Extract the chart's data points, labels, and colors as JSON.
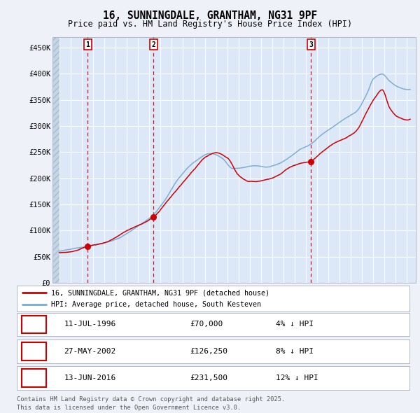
{
  "title": "16, SUNNINGDALE, GRANTHAM, NG31 9PF",
  "subtitle": "Price paid vs. HM Land Registry's House Price Index (HPI)",
  "background_color": "#eef2f8",
  "plot_bg_color": "#dce8f8",
  "ylim": [
    0,
    470000
  ],
  "yticks": [
    0,
    50000,
    100000,
    150000,
    200000,
    250000,
    300000,
    350000,
    400000,
    450000
  ],
  "ytick_labels": [
    "£0",
    "£50K",
    "£100K",
    "£150K",
    "£200K",
    "£250K",
    "£300K",
    "£350K",
    "£400K",
    "£450K"
  ],
  "sale_dates": [
    1996.53,
    2002.41,
    2016.45
  ],
  "sale_prices": [
    70000,
    126250,
    231500
  ],
  "marker_nums": [
    "1",
    "2",
    "3"
  ],
  "legend_line1": "16, SUNNINGDALE, GRANTHAM, NG31 9PF (detached house)",
  "legend_line2": "HPI: Average price, detached house, South Kesteven",
  "table_rows": [
    {
      "num": "1",
      "date": "11-JUL-1996",
      "price": "£70,000",
      "hpi": "4% ↓ HPI"
    },
    {
      "num": "2",
      "date": "27-MAY-2002",
      "price": "£126,250",
      "hpi": "8% ↓ HPI"
    },
    {
      "num": "3",
      "date": "13-JUN-2016",
      "price": "£231,500",
      "hpi": "12% ↓ HPI"
    }
  ],
  "footer": "Contains HM Land Registry data © Crown copyright and database right 2025.\nThis data is licensed under the Open Government Licence v3.0.",
  "red_line_color": "#cc0000",
  "blue_line_color": "#7aaad0",
  "marker_color": "#cc0000",
  "dashed_line_color": "#cc0000"
}
